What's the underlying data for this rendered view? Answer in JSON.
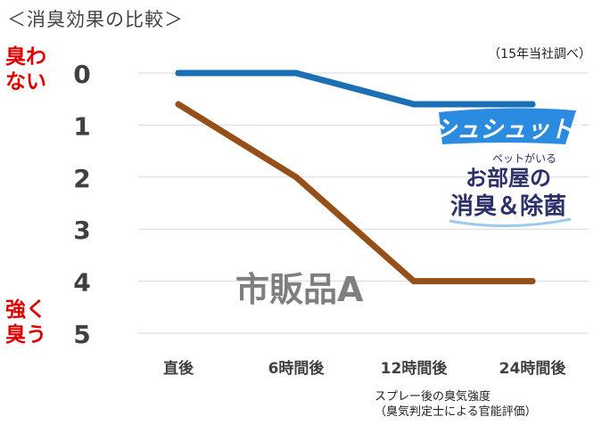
{
  "title": "＜消臭効果の比較＞",
  "note": "（15年当社調べ）",
  "y_side_labels": {
    "top_line1": "臭わ",
    "top_line2": "ない",
    "bottom_line1": "強く",
    "bottom_line2": "臭う"
  },
  "caption_line1": "スプレー後の臭気強度",
  "caption_line2": "（臭気判定士による官能評価）",
  "series_label": "市販品A",
  "brand": {
    "line1": "シュシュット!",
    "line2": "ペットがいる",
    "line3": "お部屋の",
    "line4": "消臭＆除菌"
  },
  "colors": {
    "product": "#1a6fb5",
    "competitor": "#95501a",
    "warning": "#e00000"
  },
  "chart_data": {
    "type": "line",
    "categories": [
      "直後",
      "6時間後",
      "12時間後",
      "24時間後"
    ],
    "yticks": [
      0,
      1,
      2,
      3,
      4,
      5
    ],
    "ylim": [
      0,
      5
    ],
    "y_inverted": true,
    "grid": true,
    "series": [
      {
        "values": [
          0,
          0,
          0.6,
          0.6
        ],
        "color": "#1a6fb5"
      },
      {
        "name": "市販品A",
        "values": [
          0.6,
          2,
          4,
          4
        ],
        "color": "#95501a"
      }
    ]
  }
}
